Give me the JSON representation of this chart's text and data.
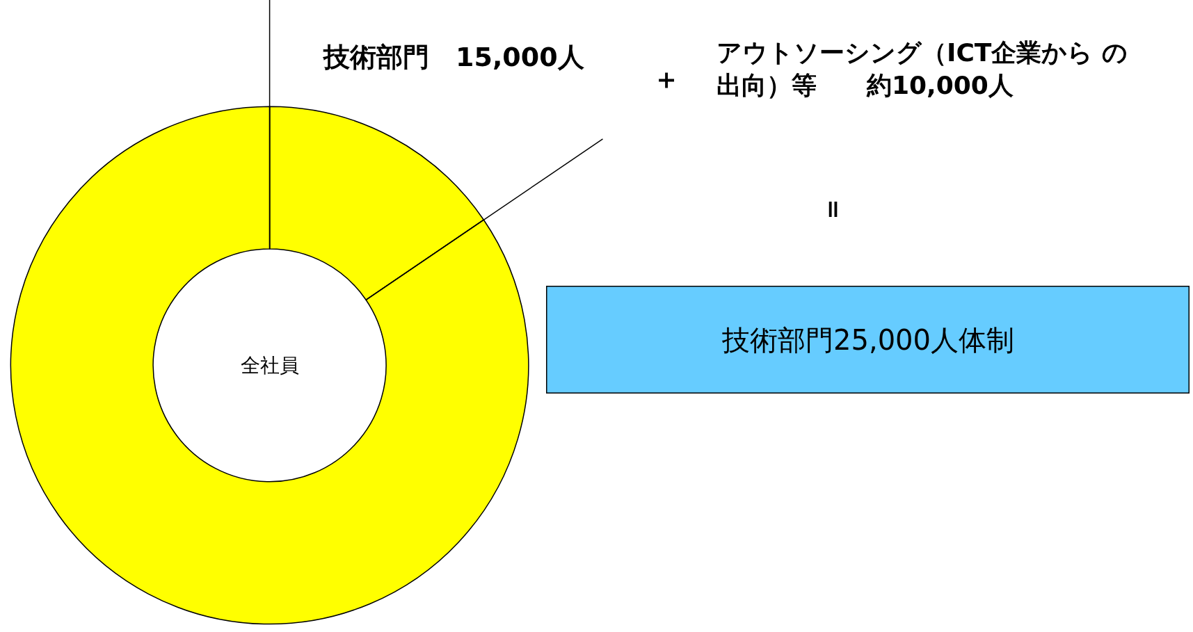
{
  "chart_data": {
    "type": "donut",
    "categories": [
      "技術部門　15,000人",
      null
    ],
    "values": [
      15.5,
      84.5
    ],
    "colors": [
      "#ffff00",
      "#ffff00"
    ],
    "annotations": [
      "全社員",
      "＋",
      "アウトソーシング（ICT企業から の",
      "出向）等　　約10,000人",
      "＝",
      "技術部門25,000人体制"
    ]
  }
}
